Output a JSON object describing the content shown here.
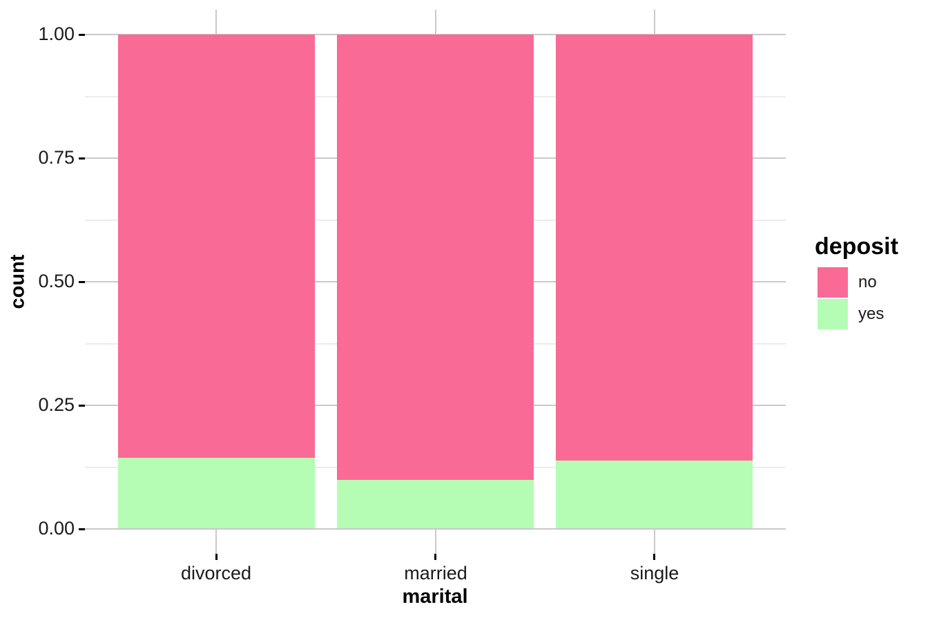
{
  "figure": {
    "background": "#ffffff"
  },
  "axes": {
    "x_title": "marital",
    "y_title": "count",
    "x_tick_labels": [
      "divorced",
      "married",
      "single"
    ],
    "y_tick_labels": [
      "0.00",
      "0.25",
      "0.50",
      "0.75",
      "1.00"
    ]
  },
  "legend": {
    "title": "deposit",
    "items": [
      {
        "label": "no",
        "color": "#FA6A96"
      },
      {
        "label": "yes",
        "color": "#B5FCB5"
      }
    ]
  },
  "chart_data": {
    "type": "bar",
    "variant": "stacked-fill",
    "orientation": "vertical",
    "title": "",
    "xlabel": "marital",
    "ylabel": "count",
    "categories": [
      "divorced",
      "married",
      "single"
    ],
    "series": [
      {
        "name": "no",
        "color": "#FA6A96",
        "values": [
          0.856,
          0.901,
          0.862
        ]
      },
      {
        "name": "yes",
        "color": "#B5FCB5",
        "values": [
          0.144,
          0.099,
          0.138
        ]
      }
    ],
    "ylim": [
      0,
      1
    ],
    "y_major_ticks": [
      0,
      0.25,
      0.5,
      0.75,
      1.0
    ],
    "y_minor_ticks": [
      0.125,
      0.375,
      0.625,
      0.875
    ],
    "legend_title": "deposit",
    "legend_position": "right",
    "grid": {
      "horizontal_major": true,
      "horizontal_minor": true,
      "vertical_stubs_at_bar_centers": true
    }
  },
  "style_colors": {
    "grid_major": "#C9C9C9",
    "grid_minor": "#EDEDED",
    "axis_tick": "#000000",
    "tick_label": "#1A1A1A",
    "title_text": "#000000"
  }
}
